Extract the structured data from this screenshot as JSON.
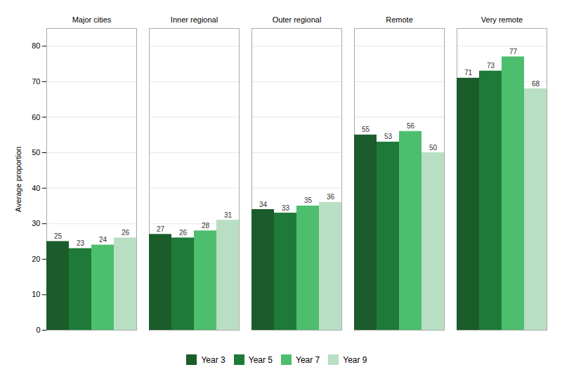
{
  "chart_data": {
    "type": "bar",
    "categories": [
      "Major cities",
      "Inner regional",
      "Outer regional",
      "Remote",
      "Very remote"
    ],
    "series": [
      {
        "name": "Year 3",
        "color": "#1a5c2a",
        "values": [
          25,
          27,
          34,
          55,
          71
        ]
      },
      {
        "name": "Year 5",
        "color": "#1e7a38",
        "values": [
          23,
          26,
          33,
          53,
          73
        ]
      },
      {
        "name": "Year 7",
        "color": "#4dbe6e",
        "values": [
          24,
          28,
          35,
          56,
          77
        ]
      },
      {
        "name": "Year 9",
        "color": "#b8dfc4",
        "values": [
          26,
          31,
          36,
          50,
          68
        ]
      }
    ],
    "ylabel": "Average proportion",
    "ylim": [
      0,
      85
    ],
    "yticks": [
      0,
      10,
      20,
      30,
      40,
      50,
      60,
      70,
      80
    ],
    "grid": true,
    "data_labels": true,
    "legend": "bottom"
  }
}
